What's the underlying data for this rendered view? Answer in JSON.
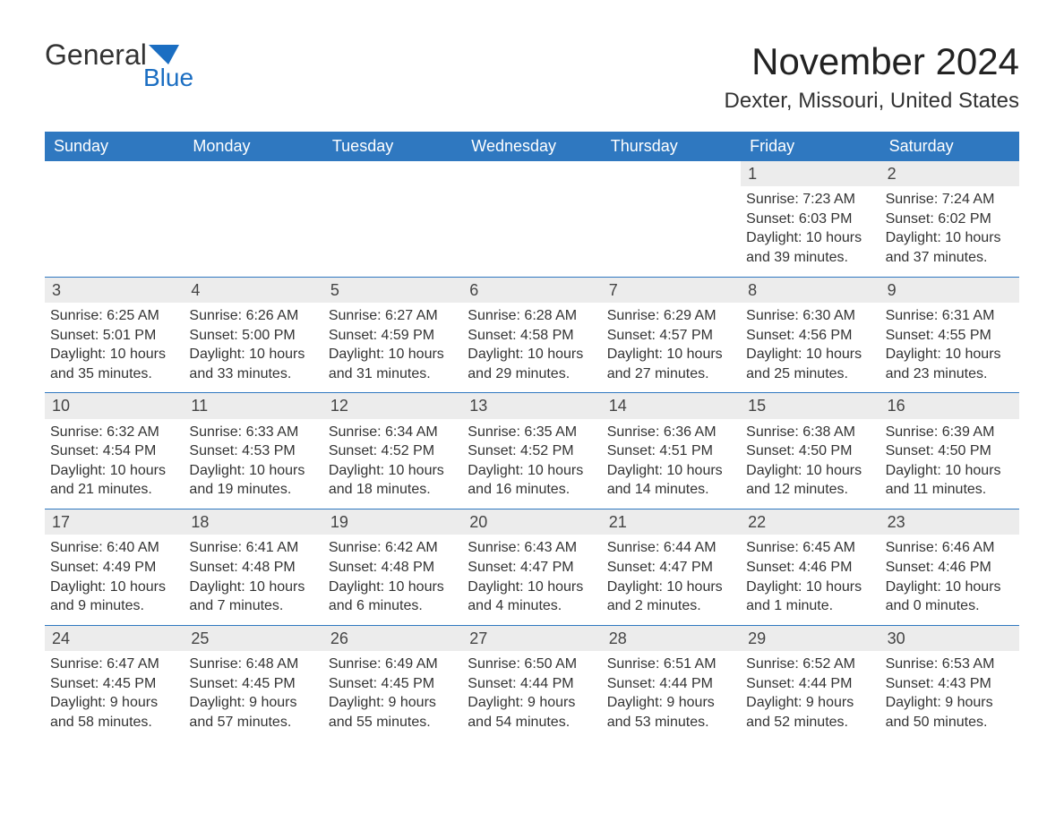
{
  "logo": {
    "text_a": "General",
    "text_b": "Blue",
    "accent_color": "#1b6ec2"
  },
  "title": "November 2024",
  "location": "Dexter, Missouri, United States",
  "colors": {
    "header_bg": "#2f78c0",
    "header_text": "#ffffff",
    "daynum_bg": "#ececec",
    "border": "#2f78c0",
    "body_text": "#333333",
    "background": "#ffffff"
  },
  "day_headers": [
    "Sunday",
    "Monday",
    "Tuesday",
    "Wednesday",
    "Thursday",
    "Friday",
    "Saturday"
  ],
  "weeks": [
    [
      {
        "blank": true
      },
      {
        "blank": true
      },
      {
        "blank": true
      },
      {
        "blank": true
      },
      {
        "blank": true
      },
      {
        "day": "1",
        "sunrise": "Sunrise: 7:23 AM",
        "sunset": "Sunset: 6:03 PM",
        "daylight1": "Daylight: 10 hours",
        "daylight2": "and 39 minutes."
      },
      {
        "day": "2",
        "sunrise": "Sunrise: 7:24 AM",
        "sunset": "Sunset: 6:02 PM",
        "daylight1": "Daylight: 10 hours",
        "daylight2": "and 37 minutes."
      }
    ],
    [
      {
        "day": "3",
        "sunrise": "Sunrise: 6:25 AM",
        "sunset": "Sunset: 5:01 PM",
        "daylight1": "Daylight: 10 hours",
        "daylight2": "and 35 minutes."
      },
      {
        "day": "4",
        "sunrise": "Sunrise: 6:26 AM",
        "sunset": "Sunset: 5:00 PM",
        "daylight1": "Daylight: 10 hours",
        "daylight2": "and 33 minutes."
      },
      {
        "day": "5",
        "sunrise": "Sunrise: 6:27 AM",
        "sunset": "Sunset: 4:59 PM",
        "daylight1": "Daylight: 10 hours",
        "daylight2": "and 31 minutes."
      },
      {
        "day": "6",
        "sunrise": "Sunrise: 6:28 AM",
        "sunset": "Sunset: 4:58 PM",
        "daylight1": "Daylight: 10 hours",
        "daylight2": "and 29 minutes."
      },
      {
        "day": "7",
        "sunrise": "Sunrise: 6:29 AM",
        "sunset": "Sunset: 4:57 PM",
        "daylight1": "Daylight: 10 hours",
        "daylight2": "and 27 minutes."
      },
      {
        "day": "8",
        "sunrise": "Sunrise: 6:30 AM",
        "sunset": "Sunset: 4:56 PM",
        "daylight1": "Daylight: 10 hours",
        "daylight2": "and 25 minutes."
      },
      {
        "day": "9",
        "sunrise": "Sunrise: 6:31 AM",
        "sunset": "Sunset: 4:55 PM",
        "daylight1": "Daylight: 10 hours",
        "daylight2": "and 23 minutes."
      }
    ],
    [
      {
        "day": "10",
        "sunrise": "Sunrise: 6:32 AM",
        "sunset": "Sunset: 4:54 PM",
        "daylight1": "Daylight: 10 hours",
        "daylight2": "and 21 minutes."
      },
      {
        "day": "11",
        "sunrise": "Sunrise: 6:33 AM",
        "sunset": "Sunset: 4:53 PM",
        "daylight1": "Daylight: 10 hours",
        "daylight2": "and 19 minutes."
      },
      {
        "day": "12",
        "sunrise": "Sunrise: 6:34 AM",
        "sunset": "Sunset: 4:52 PM",
        "daylight1": "Daylight: 10 hours",
        "daylight2": "and 18 minutes."
      },
      {
        "day": "13",
        "sunrise": "Sunrise: 6:35 AM",
        "sunset": "Sunset: 4:52 PM",
        "daylight1": "Daylight: 10 hours",
        "daylight2": "and 16 minutes."
      },
      {
        "day": "14",
        "sunrise": "Sunrise: 6:36 AM",
        "sunset": "Sunset: 4:51 PM",
        "daylight1": "Daylight: 10 hours",
        "daylight2": "and 14 minutes."
      },
      {
        "day": "15",
        "sunrise": "Sunrise: 6:38 AM",
        "sunset": "Sunset: 4:50 PM",
        "daylight1": "Daylight: 10 hours",
        "daylight2": "and 12 minutes."
      },
      {
        "day": "16",
        "sunrise": "Sunrise: 6:39 AM",
        "sunset": "Sunset: 4:50 PM",
        "daylight1": "Daylight: 10 hours",
        "daylight2": "and 11 minutes."
      }
    ],
    [
      {
        "day": "17",
        "sunrise": "Sunrise: 6:40 AM",
        "sunset": "Sunset: 4:49 PM",
        "daylight1": "Daylight: 10 hours",
        "daylight2": "and 9 minutes."
      },
      {
        "day": "18",
        "sunrise": "Sunrise: 6:41 AM",
        "sunset": "Sunset: 4:48 PM",
        "daylight1": "Daylight: 10 hours",
        "daylight2": "and 7 minutes."
      },
      {
        "day": "19",
        "sunrise": "Sunrise: 6:42 AM",
        "sunset": "Sunset: 4:48 PM",
        "daylight1": "Daylight: 10 hours",
        "daylight2": "and 6 minutes."
      },
      {
        "day": "20",
        "sunrise": "Sunrise: 6:43 AM",
        "sunset": "Sunset: 4:47 PM",
        "daylight1": "Daylight: 10 hours",
        "daylight2": "and 4 minutes."
      },
      {
        "day": "21",
        "sunrise": "Sunrise: 6:44 AM",
        "sunset": "Sunset: 4:47 PM",
        "daylight1": "Daylight: 10 hours",
        "daylight2": "and 2 minutes."
      },
      {
        "day": "22",
        "sunrise": "Sunrise: 6:45 AM",
        "sunset": "Sunset: 4:46 PM",
        "daylight1": "Daylight: 10 hours",
        "daylight2": "and 1 minute."
      },
      {
        "day": "23",
        "sunrise": "Sunrise: 6:46 AM",
        "sunset": "Sunset: 4:46 PM",
        "daylight1": "Daylight: 10 hours",
        "daylight2": "and 0 minutes."
      }
    ],
    [
      {
        "day": "24",
        "sunrise": "Sunrise: 6:47 AM",
        "sunset": "Sunset: 4:45 PM",
        "daylight1": "Daylight: 9 hours",
        "daylight2": "and 58 minutes."
      },
      {
        "day": "25",
        "sunrise": "Sunrise: 6:48 AM",
        "sunset": "Sunset: 4:45 PM",
        "daylight1": "Daylight: 9 hours",
        "daylight2": "and 57 minutes."
      },
      {
        "day": "26",
        "sunrise": "Sunrise: 6:49 AM",
        "sunset": "Sunset: 4:45 PM",
        "daylight1": "Daylight: 9 hours",
        "daylight2": "and 55 minutes."
      },
      {
        "day": "27",
        "sunrise": "Sunrise: 6:50 AM",
        "sunset": "Sunset: 4:44 PM",
        "daylight1": "Daylight: 9 hours",
        "daylight2": "and 54 minutes."
      },
      {
        "day": "28",
        "sunrise": "Sunrise: 6:51 AM",
        "sunset": "Sunset: 4:44 PM",
        "daylight1": "Daylight: 9 hours",
        "daylight2": "and 53 minutes."
      },
      {
        "day": "29",
        "sunrise": "Sunrise: 6:52 AM",
        "sunset": "Sunset: 4:44 PM",
        "daylight1": "Daylight: 9 hours",
        "daylight2": "and 52 minutes."
      },
      {
        "day": "30",
        "sunrise": "Sunrise: 6:53 AM",
        "sunset": "Sunset: 4:43 PM",
        "daylight1": "Daylight: 9 hours",
        "daylight2": "and 50 minutes."
      }
    ]
  ]
}
